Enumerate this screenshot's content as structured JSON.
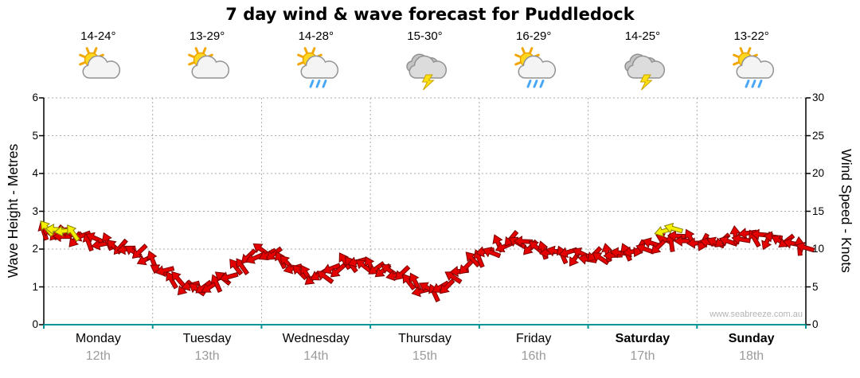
{
  "title": "7 day wind & wave forecast for Puddledock",
  "watermark": "www.seabreeze.com.au",
  "days": [
    {
      "name": "Monday",
      "date": "12th",
      "temp": "14-24°",
      "icon": "sun-cloud",
      "bold": false
    },
    {
      "name": "Tuesday",
      "date": "13th",
      "temp": "13-29°",
      "icon": "sun-cloud",
      "bold": false
    },
    {
      "name": "Wednesday",
      "date": "14th",
      "temp": "14-28°",
      "icon": "sun-cloud-rain",
      "bold": false
    },
    {
      "name": "Thursday",
      "date": "15th",
      "temp": "15-30°",
      "icon": "cloud-lightning",
      "bold": false
    },
    {
      "name": "Friday",
      "date": "16th",
      "temp": "16-29°",
      "icon": "sun-cloud-rain",
      "bold": false
    },
    {
      "name": "Saturday",
      "date": "17th",
      "temp": "14-25°",
      "icon": "cloud-lightning",
      "bold": true
    },
    {
      "name": "Sunday",
      "date": "18th",
      "temp": "13-22°",
      "icon": "sun-cloud-rain",
      "bold": true
    }
  ],
  "chart_data": {
    "type": "wind-arrow-band",
    "title": "7 day wind & wave forecast for Puddledock",
    "x_axis": {
      "unit": "days",
      "categories": [
        "Monday 12th",
        "Tuesday 13th",
        "Wednesday 14th",
        "Thursday 15th",
        "Friday 16th",
        "Saturday 17th",
        "Sunday 18th"
      ]
    },
    "y_left": {
      "label": "Wave Height - Metres",
      "range": [
        0,
        6
      ],
      "ticks": [
        0,
        1,
        2,
        3,
        4,
        5,
        6
      ]
    },
    "y_right": {
      "label": "Wind Speed - Knots",
      "range": [
        0,
        30
      ],
      "ticks": [
        0,
        5,
        10,
        15,
        20,
        25,
        30
      ]
    },
    "samples_per_day": 8,
    "wind_knots": [
      12.3,
      12.0,
      11.8,
      11.3,
      11.0,
      10.5,
      10.0,
      9.5,
      8.0,
      6.5,
      5.3,
      4.8,
      5.0,
      6.0,
      7.5,
      9.0,
      9.8,
      8.8,
      7.5,
      6.5,
      6.3,
      7.3,
      8.3,
      8.0,
      7.5,
      7.0,
      6.5,
      5.0,
      4.3,
      5.0,
      7.0,
      8.5,
      9.5,
      10.5,
      11.3,
      10.5,
      9.8,
      9.5,
      9.3,
      9.0,
      9.0,
      9.3,
      9.5,
      10.0,
      10.5,
      11.0,
      11.5,
      11.0,
      10.8,
      11.0,
      11.5,
      11.8,
      11.5,
      11.3,
      10.8,
      10.0
    ],
    "yellow_arrows": [
      {
        "t_days": 0.03,
        "knots": 12.7
      },
      {
        "t_days": 0.11,
        "knots": 12.6
      },
      {
        "t_days": 0.19,
        "knots": 12.4
      },
      {
        "t_days": 0.27,
        "knots": 12.1
      },
      {
        "t_days": 5.7,
        "knots": 12.4
      },
      {
        "t_days": 5.79,
        "knots": 12.7
      }
    ],
    "colors": {
      "arrow": "#e40000",
      "arrow_outline": "#7d0000",
      "yellow_arrow": "#f5ef00",
      "yellow_outline": "#8a8000",
      "bottom_axis": "#009595",
      "gridline": "#ababab"
    }
  }
}
